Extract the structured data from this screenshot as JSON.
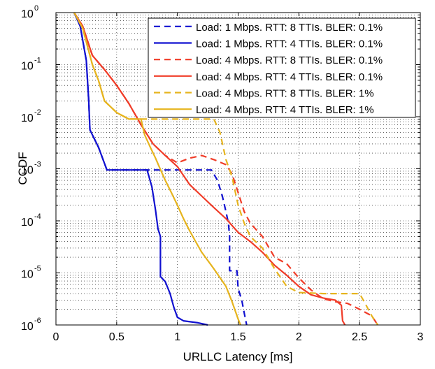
{
  "chart_data": {
    "type": "line",
    "title": "",
    "xlabel": "URLLC Latency [ms]",
    "ylabel": "CCDF",
    "xlim": [
      0,
      3
    ],
    "ylim": [
      1e-06,
      1
    ],
    "yscale": "log",
    "grid": true,
    "legend_position": "top-right",
    "x_ticks": [
      {
        "value": 0,
        "label": "0"
      },
      {
        "value": 0.5,
        "label": "0.5"
      },
      {
        "value": 1,
        "label": "1"
      },
      {
        "value": 1.5,
        "label": "1.5"
      },
      {
        "value": 2,
        "label": "2"
      },
      {
        "value": 2.5,
        "label": "2.5"
      },
      {
        "value": 3,
        "label": "3"
      }
    ],
    "y_ticks": [
      {
        "value": 1,
        "base": "10",
        "exp": "0"
      },
      {
        "value": 0.1,
        "base": "10",
        "exp": "-1"
      },
      {
        "value": 0.01,
        "base": "10",
        "exp": "-2"
      },
      {
        "value": 0.001,
        "base": "10",
        "exp": "-3"
      },
      {
        "value": 0.0001,
        "base": "10",
        "exp": "-4"
      },
      {
        "value": 1e-05,
        "base": "10",
        "exp": "-5"
      },
      {
        "value": 1e-06,
        "base": "10",
        "exp": "-6"
      }
    ],
    "series": [
      {
        "name": "Load: 1 Mbps. RTT: 8 TTIs. BLER: 0.1%",
        "color": "#1010d0",
        "dash": "dashed",
        "points": [
          [
            0.15,
            1
          ],
          [
            0.2,
            0.55
          ],
          [
            0.25,
            0.12
          ],
          [
            0.27,
            0.02
          ],
          [
            0.28,
            0.0056
          ],
          [
            0.35,
            0.0026
          ],
          [
            0.42,
            0.00095
          ],
          [
            0.8,
            0.00095
          ],
          [
            1.28,
            0.00095
          ],
          [
            1.33,
            0.0006
          ],
          [
            1.37,
            0.0003
          ],
          [
            1.4,
            0.00015
          ],
          [
            1.42,
            9e-05
          ],
          [
            1.43,
            5e-05
          ],
          [
            1.43,
            1.1e-05
          ],
          [
            1.49,
            1.1e-05
          ],
          [
            1.5,
            5e-06
          ],
          [
            1.53,
            3e-06
          ],
          [
            1.55,
            1.7e-06
          ],
          [
            1.57,
            1e-06
          ]
        ]
      },
      {
        "name": "Load: 1 Mbps. RTT: 4 TTIs. BLER: 0.1%",
        "color": "#1010d0",
        "dash": "solid",
        "points": [
          [
            0.15,
            1
          ],
          [
            0.2,
            0.55
          ],
          [
            0.25,
            0.12
          ],
          [
            0.27,
            0.02
          ],
          [
            0.28,
            0.0056
          ],
          [
            0.35,
            0.0026
          ],
          [
            0.42,
            0.00095
          ],
          [
            0.75,
            0.00095
          ],
          [
            0.79,
            0.00045
          ],
          [
            0.82,
            0.00016
          ],
          [
            0.84,
            7e-05
          ],
          [
            0.86,
            5e-05
          ],
          [
            0.86,
            8.5e-06
          ],
          [
            0.9,
            6.8e-06
          ],
          [
            0.94,
            4e-06
          ],
          [
            0.97,
            2.2e-06
          ],
          [
            1.0,
            1.4e-06
          ],
          [
            1.05,
            1.2e-06
          ],
          [
            1.17,
            1.1e-06
          ],
          [
            1.25,
            1e-06
          ]
        ]
      },
      {
        "name": "Load: 4 Mbps. RTT: 8 TTIs. BLER: 0.1%",
        "color": "#f03c28",
        "dash": "dashed",
        "points": [
          [
            0.15,
            1
          ],
          [
            0.22,
            0.55
          ],
          [
            0.3,
            0.15
          ],
          [
            0.4,
            0.08
          ],
          [
            0.5,
            0.04
          ],
          [
            0.6,
            0.018
          ],
          [
            0.7,
            0.007
          ],
          [
            0.8,
            0.003
          ],
          [
            0.9,
            0.0018
          ],
          [
            1.0,
            0.0013
          ],
          [
            1.1,
            0.0016
          ],
          [
            1.2,
            0.0018
          ],
          [
            1.3,
            0.0015
          ],
          [
            1.4,
            0.0012
          ],
          [
            1.45,
            0.0008
          ],
          [
            1.5,
            0.00035
          ],
          [
            1.55,
            0.00015
          ],
          [
            1.6,
            9e-05
          ],
          [
            1.7,
            5e-05
          ],
          [
            1.8,
            2e-05
          ],
          [
            1.9,
            1.5e-05
          ],
          [
            2.0,
            8e-06
          ],
          [
            2.1,
            4.7e-06
          ],
          [
            2.2,
            3.2e-06
          ],
          [
            2.3,
            2.8e-06
          ],
          [
            2.4,
            2.6e-06
          ],
          [
            2.5,
            2e-06
          ],
          [
            2.6,
            1.5e-06
          ],
          [
            2.65,
            1e-06
          ]
        ]
      },
      {
        "name": "Load: 4 Mbps. RTT: 4 TTIs. BLER: 0.1%",
        "color": "#f03c28",
        "dash": "solid",
        "points": [
          [
            0.15,
            1
          ],
          [
            0.22,
            0.55
          ],
          [
            0.3,
            0.15
          ],
          [
            0.4,
            0.08
          ],
          [
            0.5,
            0.04
          ],
          [
            0.6,
            0.018
          ],
          [
            0.7,
            0.007
          ],
          [
            0.8,
            0.003
          ],
          [
            0.9,
            0.0018
          ],
          [
            1.0,
            0.0011
          ],
          [
            1.1,
            0.0005
          ],
          [
            1.2,
            0.0003
          ],
          [
            1.3,
            0.00018
          ],
          [
            1.4,
            0.00011
          ],
          [
            1.5,
            6e-05
          ],
          [
            1.6,
            4e-05
          ],
          [
            1.7,
            2.5e-05
          ],
          [
            1.8,
            1.4e-05
          ],
          [
            1.9,
            9e-06
          ],
          [
            2.0,
            5.5e-06
          ],
          [
            2.1,
            3.8e-06
          ],
          [
            2.2,
            3.3e-06
          ],
          [
            2.3,
            3e-06
          ],
          [
            2.35,
            2.4e-06
          ],
          [
            2.36,
            1.2e-06
          ],
          [
            2.38,
            1e-06
          ]
        ]
      },
      {
        "name": "Load: 4 Mbps. RTT: 8 TTIs. BLER: 1%",
        "color": "#e6b41e",
        "dash": "dashed",
        "points": [
          [
            0.15,
            1
          ],
          [
            0.22,
            0.5
          ],
          [
            0.3,
            0.1
          ],
          [
            0.35,
            0.05
          ],
          [
            0.4,
            0.02
          ],
          [
            0.5,
            0.012
          ],
          [
            0.6,
            0.009
          ],
          [
            0.7,
            0.009
          ],
          [
            1.0,
            0.009
          ],
          [
            1.3,
            0.009
          ],
          [
            1.35,
            0.005
          ],
          [
            1.4,
            0.0015
          ],
          [
            1.45,
            0.0007
          ],
          [
            1.5,
            0.0002
          ],
          [
            1.55,
            9e-05
          ],
          [
            1.6,
            5e-05
          ],
          [
            1.7,
            3e-05
          ],
          [
            1.8,
            1.2e-05
          ],
          [
            1.9,
            5.5e-06
          ],
          [
            2.0,
            4.2e-06
          ],
          [
            2.2,
            4e-06
          ],
          [
            2.5,
            4e-06
          ],
          [
            2.55,
            2.5e-06
          ],
          [
            2.6,
            1.5e-06
          ],
          [
            2.65,
            1e-06
          ]
        ]
      },
      {
        "name": "Load: 4 Mbps. RTT: 4 TTIs. BLER: 1%",
        "color": "#e6b41e",
        "dash": "solid",
        "points": [
          [
            0.15,
            1
          ],
          [
            0.22,
            0.5
          ],
          [
            0.3,
            0.1
          ],
          [
            0.35,
            0.05
          ],
          [
            0.4,
            0.02
          ],
          [
            0.5,
            0.012
          ],
          [
            0.6,
            0.009
          ],
          [
            0.7,
            0.009
          ],
          [
            0.73,
            0.0045
          ],
          [
            0.78,
            0.0025
          ],
          [
            0.82,
            0.0016
          ],
          [
            0.85,
            0.0011
          ],
          [
            0.9,
            0.0006
          ],
          [
            0.95,
            0.00035
          ],
          [
            1.0,
            0.0002
          ],
          [
            1.05,
            0.00011
          ],
          [
            1.1,
            6.5e-05
          ],
          [
            1.15,
            4e-05
          ],
          [
            1.2,
            2.5e-05
          ],
          [
            1.3,
            1.2e-05
          ],
          [
            1.4,
            5.5e-06
          ],
          [
            1.45,
            2.8e-06
          ],
          [
            1.5,
            1.3e-06
          ],
          [
            1.52,
            1e-06
          ]
        ]
      }
    ]
  }
}
